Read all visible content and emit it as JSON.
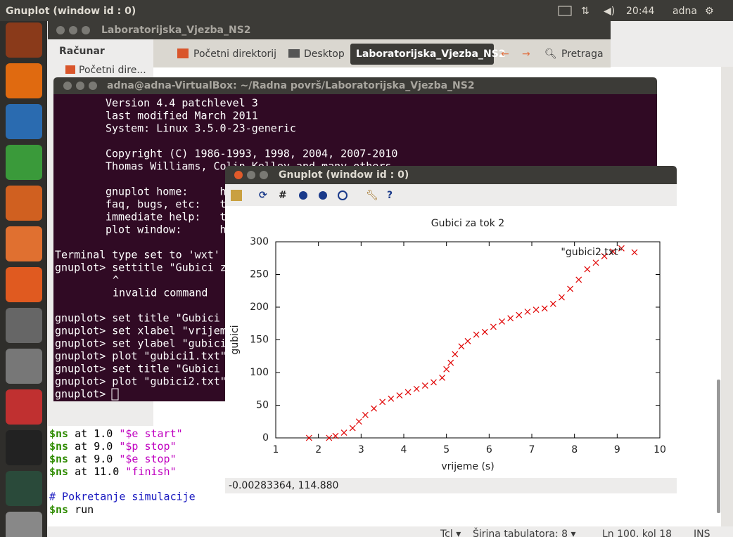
{
  "top_panel": {
    "title": "Gnuplot (window id : 0)",
    "time": "20:44",
    "user": "adna"
  },
  "file_manager": {
    "title": "Laboratorijska_Vjezba_NS2",
    "sidebar_heading": "Računar",
    "sidebar_item": "Početni dire...",
    "path": [
      "Početni direktorij",
      "Desktop",
      "Laboratorijska_Vjezba_NS2"
    ],
    "search": "Pretraga"
  },
  "terminal": {
    "title": "adna@adna-VirtualBox: ~/Radna površ/Laboratorijska_Vjezba_NS2",
    "lines": [
      "Version 4.4 patchlevel 3",
      "last modified March 2011",
      "System: Linux 3.5.0-23-generic",
      "Copyright (C) 1986-1993, 1998, 2004, 2007-2010",
      "Thomas Williams, Colin Kelley and many others",
      "gnuplot home:     h",
      "faq, bugs, etc:   t",
      "immediate help:   t",
      "plot window:      h",
      "Terminal type set to 'wxt'",
      "gnuplot> settitle \"Gubici z",
      "^",
      "invalid command",
      "gnuplot> set title \"Gubici",
      "gnuplot> set xlabel \"vrijem",
      "gnuplot> set ylabel \"gubici",
      "gnuplot> plot \"gubici1.txt\"",
      "gnuplot> set title \"Gubici",
      "gnuplot> plot \"gubici2.txt\"",
      "gnuplot> "
    ]
  },
  "editor": {
    "lines": [
      [
        "$ns",
        " at 1.0 ",
        "\"$e start\""
      ],
      [
        "$ns",
        " at 9.0 ",
        "\"$p stop\""
      ],
      [
        "$ns",
        " at 9.0 ",
        "\"$e stop\""
      ],
      [
        "$ns",
        " at 11.0 ",
        "\"finish\""
      ]
    ],
    "comment": "# Pokretanje simulacije",
    "last_line": [
      "$ns",
      " run"
    ],
    "status": [
      "Tcl ▾",
      "Širina tabulatora: 8 ▾",
      "Ln 100, kol 18",
      "INS"
    ]
  },
  "gnuplot": {
    "title": "Gnuplot (window id : 0)",
    "status": "-0.00283364, 114.880"
  },
  "chart_data": {
    "type": "scatter",
    "title": "Gubici za tok 2",
    "xlabel": "vrijeme (s)",
    "ylabel": "gubici",
    "xlim": [
      1,
      10
    ],
    "ylim": [
      0,
      300
    ],
    "xticks": [
      1,
      2,
      3,
      4,
      5,
      6,
      7,
      8,
      9,
      10
    ],
    "yticks": [
      0,
      50,
      100,
      150,
      200,
      250,
      300
    ],
    "grid": false,
    "legend": "top-right",
    "x": [
      1.78,
      2.25,
      2.4,
      2.6,
      2.8,
      2.95,
      3.1,
      3.3,
      3.5,
      3.7,
      3.9,
      4.1,
      4.3,
      4.5,
      4.7,
      4.9,
      5.0,
      5.1,
      5.2,
      5.35,
      5.5,
      5.7,
      5.9,
      6.1,
      6.3,
      6.5,
      6.7,
      6.9,
      7.1,
      7.3,
      7.5,
      7.7,
      7.9,
      8.1,
      8.3,
      8.5,
      8.7,
      8.9,
      9.1
    ],
    "series": [
      {
        "name": "\"gubici2.txt\"",
        "color": "#e00000",
        "values": [
          0,
          0,
          3,
          8,
          15,
          25,
          35,
          45,
          55,
          60,
          65,
          70,
          75,
          80,
          85,
          92,
          105,
          115,
          128,
          140,
          148,
          158,
          162,
          170,
          178,
          183,
          188,
          193,
          196,
          198,
          205,
          215,
          228,
          242,
          258,
          268,
          278,
          285,
          290
        ]
      }
    ]
  }
}
